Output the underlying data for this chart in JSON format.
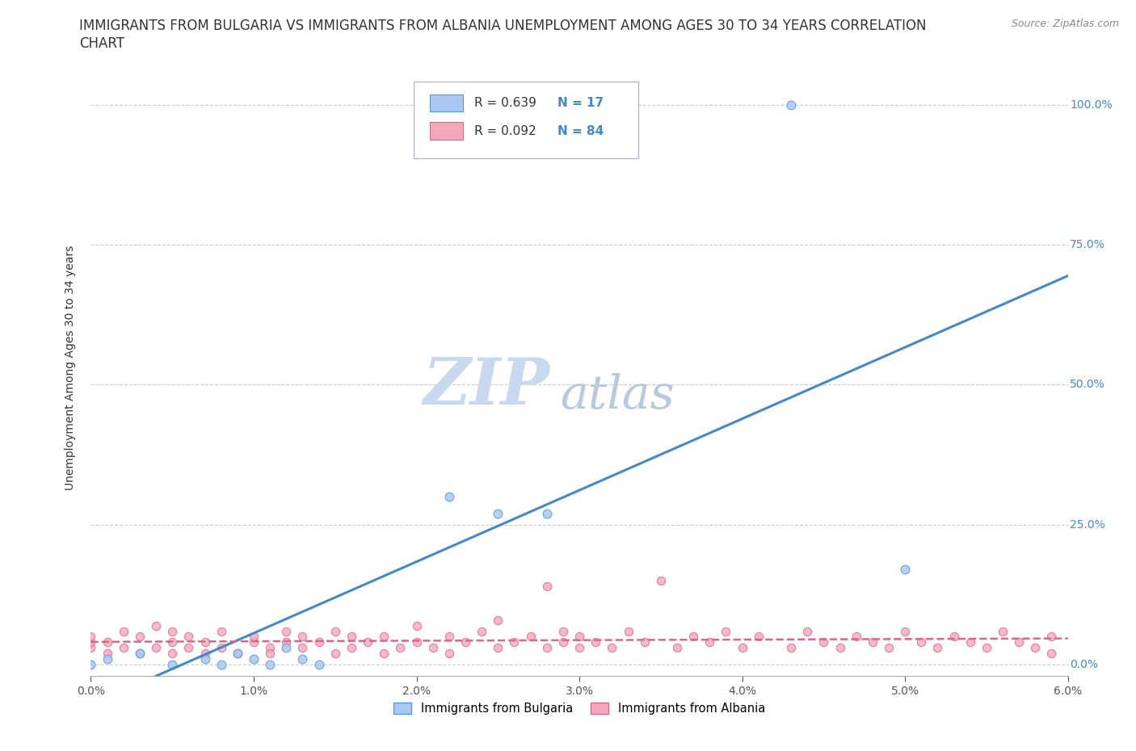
{
  "title_line1": "IMMIGRANTS FROM BULGARIA VS IMMIGRANTS FROM ALBANIA UNEMPLOYMENT AMONG AGES 30 TO 34 YEARS CORRELATION",
  "title_line2": "CHART",
  "source": "Source: ZipAtlas.com",
  "ylabel": "Unemployment Among Ages 30 to 34 years",
  "xlim": [
    0.0,
    0.06
  ],
  "ylim": [
    -0.02,
    1.08
  ],
  "xticks": [
    0.0,
    0.01,
    0.02,
    0.03,
    0.04,
    0.05,
    0.06
  ],
  "xticklabels": [
    "0.0%",
    "1.0%",
    "2.0%",
    "3.0%",
    "4.0%",
    "5.0%",
    "6.0%"
  ],
  "yticks": [
    0.0,
    0.25,
    0.5,
    0.75,
    1.0
  ],
  "yticklabels": [
    "0.0%",
    "25.0%",
    "50.0%",
    "75.0%",
    "100.0%"
  ],
  "bulgaria_color": "#aac8f0",
  "albania_color": "#f5a8bc",
  "bulgaria_edge_color": "#5599dd",
  "albania_edge_color": "#dd6688",
  "bulgaria_line_color": "#4488cc",
  "albania_line_color": "#dd6688",
  "bg_color": "#ffffff",
  "grid_color": "#cccccc",
  "R_bulgaria": 0.639,
  "N_bulgaria": 17,
  "R_albania": 0.092,
  "N_albania": 84,
  "bulgaria_scatter_x": [
    0.0,
    0.001,
    0.003,
    0.005,
    0.007,
    0.008,
    0.009,
    0.01,
    0.011,
    0.012,
    0.013,
    0.014,
    0.022,
    0.025,
    0.028,
    0.043,
    0.05
  ],
  "bulgaria_scatter_y": [
    0.0,
    0.01,
    0.02,
    0.0,
    0.01,
    0.0,
    0.02,
    0.01,
    0.0,
    0.03,
    0.01,
    0.0,
    0.3,
    0.27,
    0.27,
    1.0,
    0.17
  ],
  "albania_scatter_x": [
    0.0,
    0.0,
    0.0,
    0.001,
    0.001,
    0.002,
    0.002,
    0.003,
    0.003,
    0.004,
    0.004,
    0.005,
    0.005,
    0.005,
    0.006,
    0.006,
    0.007,
    0.007,
    0.008,
    0.008,
    0.009,
    0.01,
    0.01,
    0.011,
    0.011,
    0.012,
    0.012,
    0.013,
    0.013,
    0.014,
    0.015,
    0.015,
    0.016,
    0.016,
    0.017,
    0.018,
    0.018,
    0.019,
    0.02,
    0.02,
    0.021,
    0.022,
    0.022,
    0.023,
    0.024,
    0.025,
    0.025,
    0.026,
    0.027,
    0.028,
    0.028,
    0.029,
    0.029,
    0.03,
    0.03,
    0.031,
    0.032,
    0.033,
    0.034,
    0.035,
    0.036,
    0.037,
    0.038,
    0.039,
    0.04,
    0.041,
    0.043,
    0.044,
    0.045,
    0.046,
    0.047,
    0.048,
    0.049,
    0.05,
    0.051,
    0.052,
    0.053,
    0.054,
    0.055,
    0.056,
    0.057,
    0.058,
    0.059,
    0.059
  ],
  "albania_scatter_y": [
    0.03,
    0.04,
    0.05,
    0.02,
    0.04,
    0.03,
    0.06,
    0.02,
    0.05,
    0.03,
    0.07,
    0.02,
    0.04,
    0.06,
    0.03,
    0.05,
    0.02,
    0.04,
    0.03,
    0.06,
    0.02,
    0.04,
    0.05,
    0.03,
    0.02,
    0.04,
    0.06,
    0.03,
    0.05,
    0.04,
    0.02,
    0.06,
    0.03,
    0.05,
    0.04,
    0.02,
    0.05,
    0.03,
    0.04,
    0.07,
    0.03,
    0.02,
    0.05,
    0.04,
    0.06,
    0.03,
    0.08,
    0.04,
    0.05,
    0.03,
    0.14,
    0.04,
    0.06,
    0.03,
    0.05,
    0.04,
    0.03,
    0.06,
    0.04,
    0.15,
    0.03,
    0.05,
    0.04,
    0.06,
    0.03,
    0.05,
    0.03,
    0.06,
    0.04,
    0.03,
    0.05,
    0.04,
    0.03,
    0.06,
    0.04,
    0.03,
    0.05,
    0.04,
    0.03,
    0.06,
    0.04,
    0.03,
    0.02,
    0.05
  ],
  "watermark_zip": "ZIP",
  "watermark_atlas": "atlas",
  "watermark_color_zip": "#c8d8ee",
  "watermark_color_atlas": "#b8c8de",
  "title_fontsize": 12,
  "axis_label_fontsize": 10,
  "tick_fontsize": 10,
  "legend_fontsize": 11,
  "source_fontsize": 9
}
